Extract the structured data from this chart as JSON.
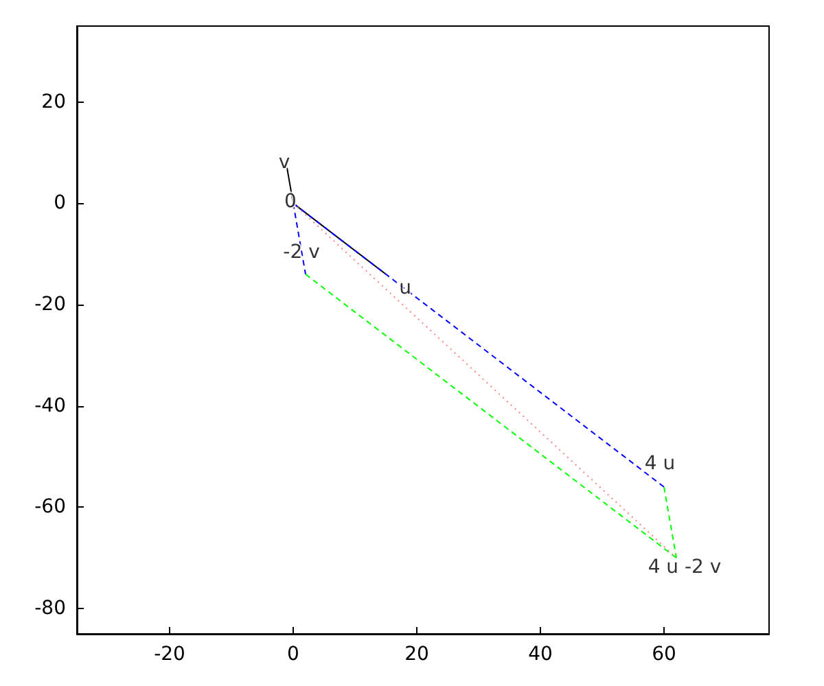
{
  "chart_data": {
    "type": "line",
    "xlim": [
      -35,
      77
    ],
    "ylim": [
      -85,
      35
    ],
    "xticks": [
      -20,
      0,
      20,
      40,
      60
    ],
    "yticks": [
      -80,
      -60,
      -40,
      -20,
      0,
      20
    ],
    "grid": false,
    "marker": "none",
    "series": [
      {
        "color": "#000000",
        "line_style": "solid",
        "x": [
          0,
          15
        ],
        "values": [
          0,
          -14
        ]
      },
      {
        "color": "#000000",
        "line_style": "solid",
        "x": [
          0,
          -1
        ],
        "values": [
          0,
          7
        ]
      },
      {
        "color": "#0000ff",
        "line_style": "dashed",
        "x": [
          0,
          60
        ],
        "values": [
          0,
          -56
        ]
      },
      {
        "color": "#0000ff",
        "line_style": "dashed",
        "x": [
          0,
          2
        ],
        "values": [
          0,
          -14
        ]
      },
      {
        "color": "#00ff00",
        "line_style": "dashed",
        "x": [
          2,
          62
        ],
        "values": [
          -14,
          -70
        ]
      },
      {
        "color": "#00ff00",
        "line_style": "dashed",
        "x": [
          60,
          62
        ],
        "values": [
          -56,
          -70
        ]
      },
      {
        "color": "#ff8080",
        "line_style": "dotted",
        "x": [
          0,
          62
        ],
        "values": [
          0,
          -70
        ]
      }
    ],
    "annotations": [
      {
        "text": "v",
        "x": -1,
        "y": 7
      },
      {
        "text": "0",
        "x": 0,
        "y": 0
      },
      {
        "text": "u",
        "x": 15,
        "y": -14
      },
      {
        "text": "-2 v",
        "x": 2,
        "y": -14
      },
      {
        "text": "4 u",
        "x": 60,
        "y": -56
      },
      {
        "text": "4 u -2 v",
        "x": 62,
        "y": -70
      }
    ]
  }
}
